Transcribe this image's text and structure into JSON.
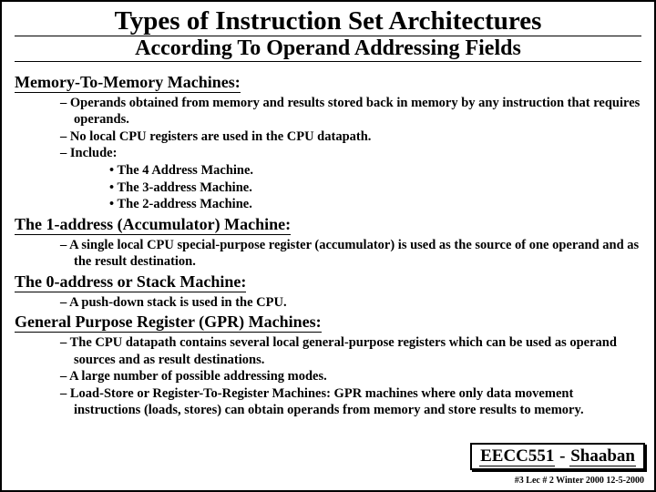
{
  "title": "Types of Instruction Set Architectures",
  "subtitle": "According To Operand Addressing Fields",
  "section1": {
    "heading": "Memory-To-Memory Machines:",
    "b1": "Operands obtained from memory and results stored back in memory by any instruction that requires operands.",
    "b2": "No local CPU registers are used in the CPU datapath.",
    "b3": "Include:",
    "s1": "The 4 Address Machine.",
    "s2": "The 3-address Machine.",
    "s3": "The 2-address Machine."
  },
  "section2": {
    "heading": "The 1-address (Accumulator) Machine:",
    "b1": "A single local CPU special-purpose register (accumulator) is used as the source of one operand and as the result destination."
  },
  "section3": {
    "heading": "The 0-address or Stack Machine:",
    "b1": "A push-down stack is used in the CPU."
  },
  "section4": {
    "heading": "General Purpose Register (GPR) Machines:",
    "b1": "The CPU datapath contains several local general-purpose registers which can be used as operand sources and as result destinations.",
    "b2": "A large number of possible addressing modes.",
    "b3": "Load-Store or Register-To-Register Machines:  GPR machines where only data movement instructions (loads, stores) can obtain operands from memory and store results to memory."
  },
  "footer": {
    "course": "EECC551",
    "name": "Shaaban",
    "meta": "#3  Lec # 2   Winter 2000  12-5-2000"
  }
}
